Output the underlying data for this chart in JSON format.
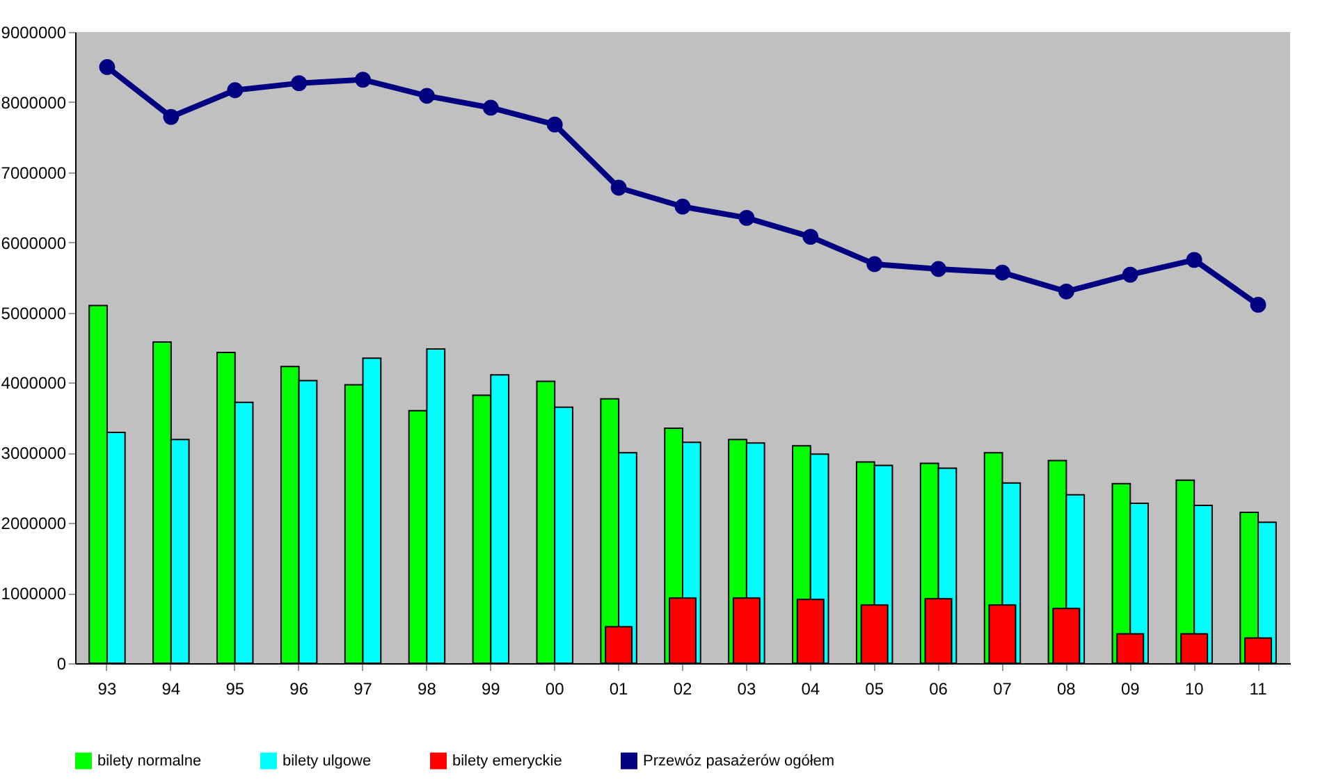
{
  "chart_data": {
    "type": "bar",
    "categories": [
      "93",
      "94",
      "95",
      "96",
      "97",
      "98",
      "99",
      "00",
      "01",
      "02",
      "03",
      "04",
      "05",
      "06",
      "07",
      "08",
      "09",
      "10",
      "11"
    ],
    "ylim": [
      0,
      9000000
    ],
    "yticks": [
      0,
      1000000,
      2000000,
      3000000,
      4000000,
      5000000,
      6000000,
      7000000,
      8000000,
      9000000
    ],
    "legend": "bottom",
    "marker": "circle",
    "series": [
      {
        "name": "bilety normalne",
        "color": "#00ff00",
        "values": [
          5100000,
          4580000,
          4430000,
          4230000,
          3970000,
          3600000,
          3820000,
          4020000,
          3770000,
          3350000,
          3190000,
          3100000,
          2870000,
          2850000,
          3000000,
          2890000,
          2560000,
          2610000,
          2150000
        ]
      },
      {
        "name": "bilety ulgowe",
        "color": "#00ffff",
        "values": [
          3290000,
          3190000,
          3720000,
          4030000,
          4350000,
          4480000,
          4110000,
          3650000,
          3000000,
          3150000,
          3140000,
          2980000,
          2820000,
          2780000,
          2570000,
          2400000,
          2280000,
          2250000,
          2010000
        ]
      },
      {
        "name": "bilety emeryckie",
        "color": "#ff0000",
        "values": [
          null,
          null,
          null,
          null,
          null,
          null,
          null,
          null,
          520000,
          930000,
          930000,
          910000,
          830000,
          920000,
          830000,
          780000,
          420000,
          420000,
          360000
        ]
      },
      {
        "name": "Przewóz pasażerów ogółem",
        "color": "#000080",
        "type": "line",
        "values": [
          8500000,
          7790000,
          8170000,
          8270000,
          8320000,
          8090000,
          7920000,
          7680000,
          6780000,
          6510000,
          6350000,
          6080000,
          5690000,
          5620000,
          5570000,
          5300000,
          5540000,
          5750000,
          5110000
        ]
      }
    ]
  }
}
